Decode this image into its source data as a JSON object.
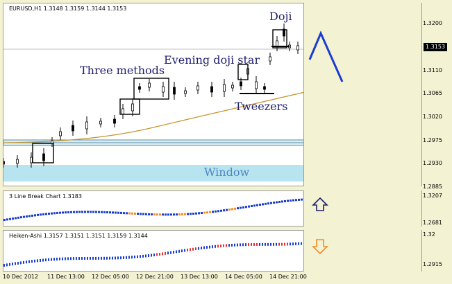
{
  "main_pane": {
    "title": "EURUSD,H1  1.3148 1.3159 1.3144 1.3153",
    "current_price": "1.3153",
    "price_ticks": [
      "1.3200",
      "1.3110",
      "1.3065",
      "1.3020",
      "1.2975",
      "1.2930",
      "1.2885"
    ],
    "annotations": {
      "doji": "Doji",
      "evening_doji_star": "Evening doji star",
      "three_methods": "Three methods",
      "tweezers": "Tweezers",
      "window": "Window"
    },
    "forecast_color": "#1a3ccf",
    "moving_average_color": "#c8962e",
    "window_band_color": "#b7e4ee"
  },
  "line_break_pane": {
    "title": "3 Line Break Chart 1.3183",
    "ticks": [
      "1.3207",
      "1.2681"
    ],
    "arrow_direction": "up",
    "arrow_color": "#1e1e6e",
    "up_color": "#1a3ccf",
    "down_color": "#f28c28"
  },
  "heiken_ashi_pane": {
    "title": "Heiken-Ashi 1.3157 1.3151 1.3151 1.3159 1.3144",
    "ticks": [
      "1.32",
      "1.2915"
    ],
    "arrow_direction": "down",
    "arrow_color": "#f28c28",
    "up_color": "#1a3ccf",
    "down_color": "#e03030"
  },
  "time_axis": [
    "10 Dec 2012",
    "11 Dec 13:00",
    "12 Dec 05:00",
    "12 Dec 21:00",
    "13 Dec 13:00",
    "14 Dec 05:00",
    "14 Dec 21:00"
  ]
}
